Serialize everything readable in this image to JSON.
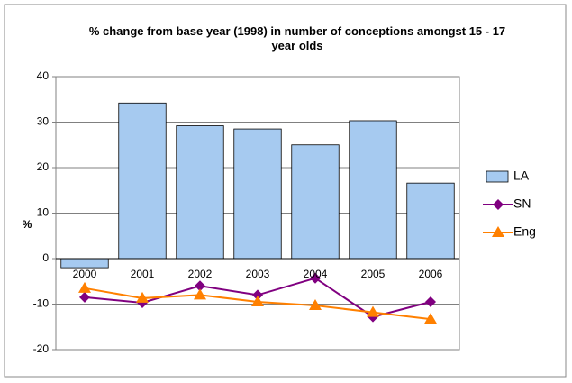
{
  "chart_data": {
    "type": "bar",
    "title": "% change from base year (1998) in number of conceptions amongst 15 - 17 year olds",
    "y_label": "%",
    "categories": [
      "2000",
      "2001",
      "2002",
      "2003",
      "2004",
      "2005",
      "2006"
    ],
    "series": [
      {
        "name": "LA",
        "type": "bar",
        "color": "#a6caf0",
        "values": [
          -2,
          34.2,
          29.2,
          28.5,
          25,
          30.3,
          16.6
        ]
      },
      {
        "name": "SN",
        "type": "line",
        "marker": "diamond",
        "color": "#800080",
        "values": [
          -8.5,
          -9.7,
          -6,
          -8,
          -4.3,
          -12.8,
          -9.5
        ]
      },
      {
        "name": "Eng",
        "type": "line",
        "marker": "triangle",
        "color": "#ff8000",
        "values": [
          -6.5,
          -8.7,
          -8,
          -9.5,
          -10.3,
          -11.8,
          -13.3
        ]
      }
    ],
    "ylim": [
      -20,
      40
    ],
    "yticks": [
      -20,
      -10,
      0,
      10,
      20,
      30,
      40
    ],
    "grid": true,
    "legend": "right"
  }
}
